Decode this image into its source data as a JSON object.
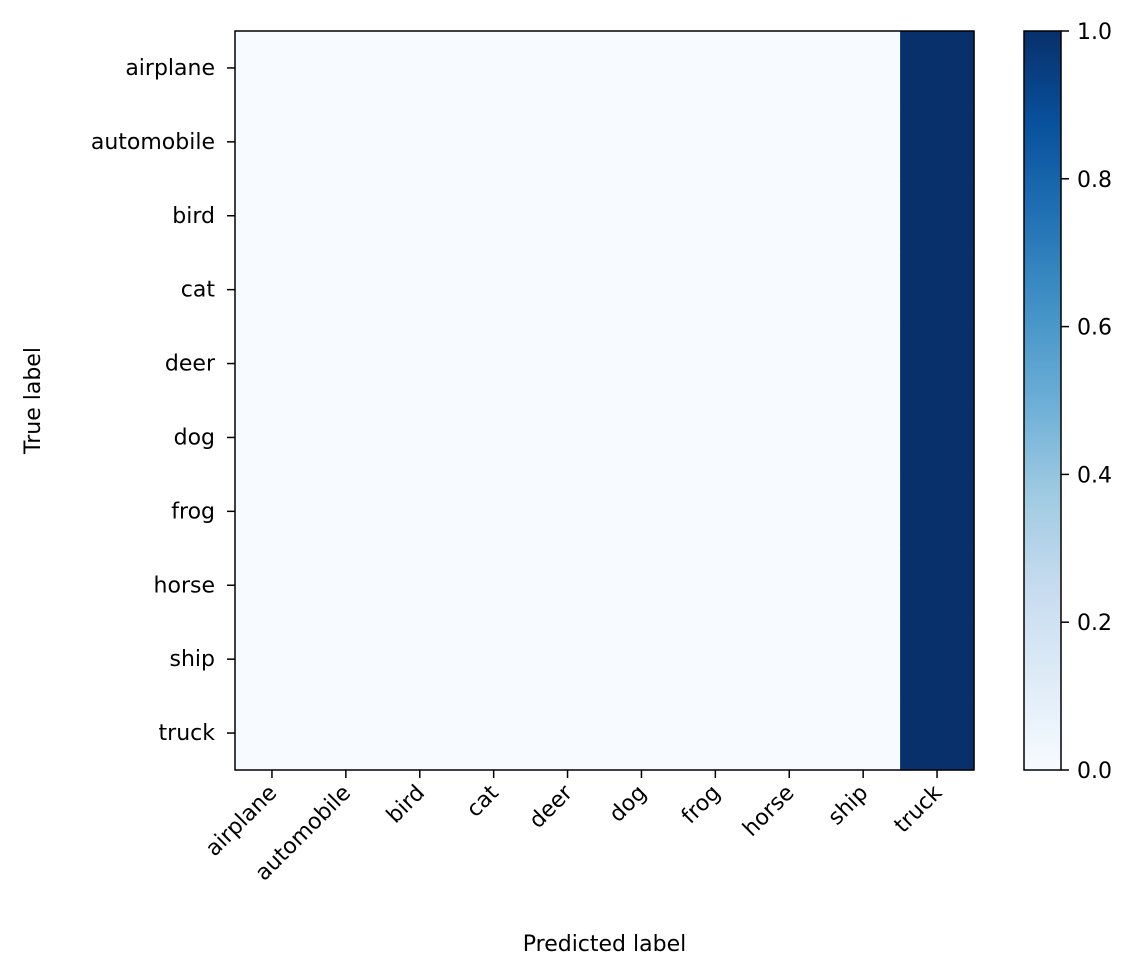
{
  "chart_data": {
    "type": "heatmap",
    "title": "",
    "xlabel": "Predicted label",
    "ylabel": "True label",
    "x_categories": [
      "airplane",
      "automobile",
      "bird",
      "cat",
      "deer",
      "dog",
      "frog",
      "horse",
      "ship",
      "truck"
    ],
    "y_categories": [
      "airplane",
      "automobile",
      "bird",
      "cat",
      "deer",
      "dog",
      "frog",
      "horse",
      "ship",
      "truck"
    ],
    "values": [
      [
        0,
        0,
        0,
        0,
        0,
        0,
        0,
        0,
        0,
        1
      ],
      [
        0,
        0,
        0,
        0,
        0,
        0,
        0,
        0,
        0,
        1
      ],
      [
        0,
        0,
        0,
        0,
        0,
        0,
        0,
        0,
        0,
        1
      ],
      [
        0,
        0,
        0,
        0,
        0,
        0,
        0,
        0,
        0,
        1
      ],
      [
        0,
        0,
        0,
        0,
        0,
        0,
        0,
        0,
        0,
        1
      ],
      [
        0,
        0,
        0,
        0,
        0,
        0,
        0,
        0,
        0,
        1
      ],
      [
        0,
        0,
        0,
        0,
        0,
        0,
        0,
        0,
        0,
        1
      ],
      [
        0,
        0,
        0,
        0,
        0,
        0,
        0,
        0,
        0,
        1
      ],
      [
        0,
        0,
        0,
        0,
        0,
        0,
        0,
        0,
        0,
        1
      ],
      [
        0,
        0,
        0,
        0,
        0,
        0,
        0,
        0,
        0,
        1
      ]
    ],
    "colormap": "Blues",
    "colorbar": {
      "range": [
        0.0,
        1.0
      ],
      "ticks": [
        0.0,
        0.2,
        0.4,
        0.6,
        0.8,
        1.0
      ],
      "tick_labels": [
        "0.0",
        "0.2",
        "0.4",
        "0.6",
        "0.8",
        "1.0"
      ]
    },
    "grid": false,
    "colors": {
      "low": "#f7fbff",
      "high": "#08306b"
    }
  }
}
